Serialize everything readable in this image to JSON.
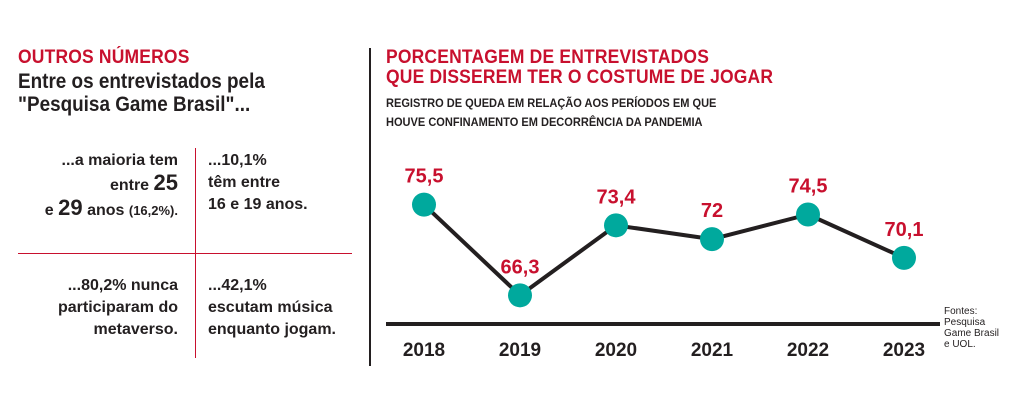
{
  "left": {
    "title": "OUTROS NÚMEROS",
    "subtitle_line1": "Entre os entrevistados pela",
    "subtitle_line2": "\"Pesquisa Game Brasil\"...",
    "stat1": {
      "l1": "...a maioria tem",
      "l2a": "entre ",
      "l2b": "25",
      "l3a": "e ",
      "l3b": "29",
      "l3c": " anos ",
      "l3d": "(16,2%)."
    },
    "stat2": {
      "l1": "...10,1%",
      "l2": "têm entre",
      "l3": "16 e 19 anos."
    },
    "stat3": {
      "l1": "...80,2% nunca",
      "l2": "participaram do",
      "l3": "metaverso."
    },
    "stat4": {
      "l1": "...42,1%",
      "l2": "escutam música",
      "l3": "enquanto jogam."
    }
  },
  "right": {
    "title_line1": "PORCENTAGEM DE ENTREVISTADOS",
    "title_line2": "QUE DISSEREM TER O COSTUME DE JOGAR",
    "sub_line1": "REGISTRO DE QUEDA EM RELAÇÃO AOS PERÍODOS EM QUE",
    "sub_line2": "HOUVE CONFINAMENTO EM DECORRÊNCIA DA PANDEMIA",
    "source_l1": "Fontes:",
    "source_l2": "Pesquisa",
    "source_l3": "Game Brasil",
    "source_l4": "e UOL."
  },
  "colors": {
    "accent": "#c8102e",
    "marker": "#00a99d",
    "line": "#231f20"
  },
  "chart_data": {
    "type": "line",
    "title": "PORCENTAGEM DE ENTREVISTADOS QUE DISSEREM TER O COSTUME DE JOGAR",
    "x": [
      "2018",
      "2019",
      "2020",
      "2021",
      "2022",
      "2023"
    ],
    "values": [
      75.5,
      66.3,
      73.4,
      72,
      74.5,
      70.1
    ],
    "labels": [
      "75,5",
      "66,3",
      "73,4",
      "72",
      "74,5",
      "70,1"
    ],
    "ylim": [
      64,
      78
    ],
    "grid": false,
    "legend": "none"
  }
}
